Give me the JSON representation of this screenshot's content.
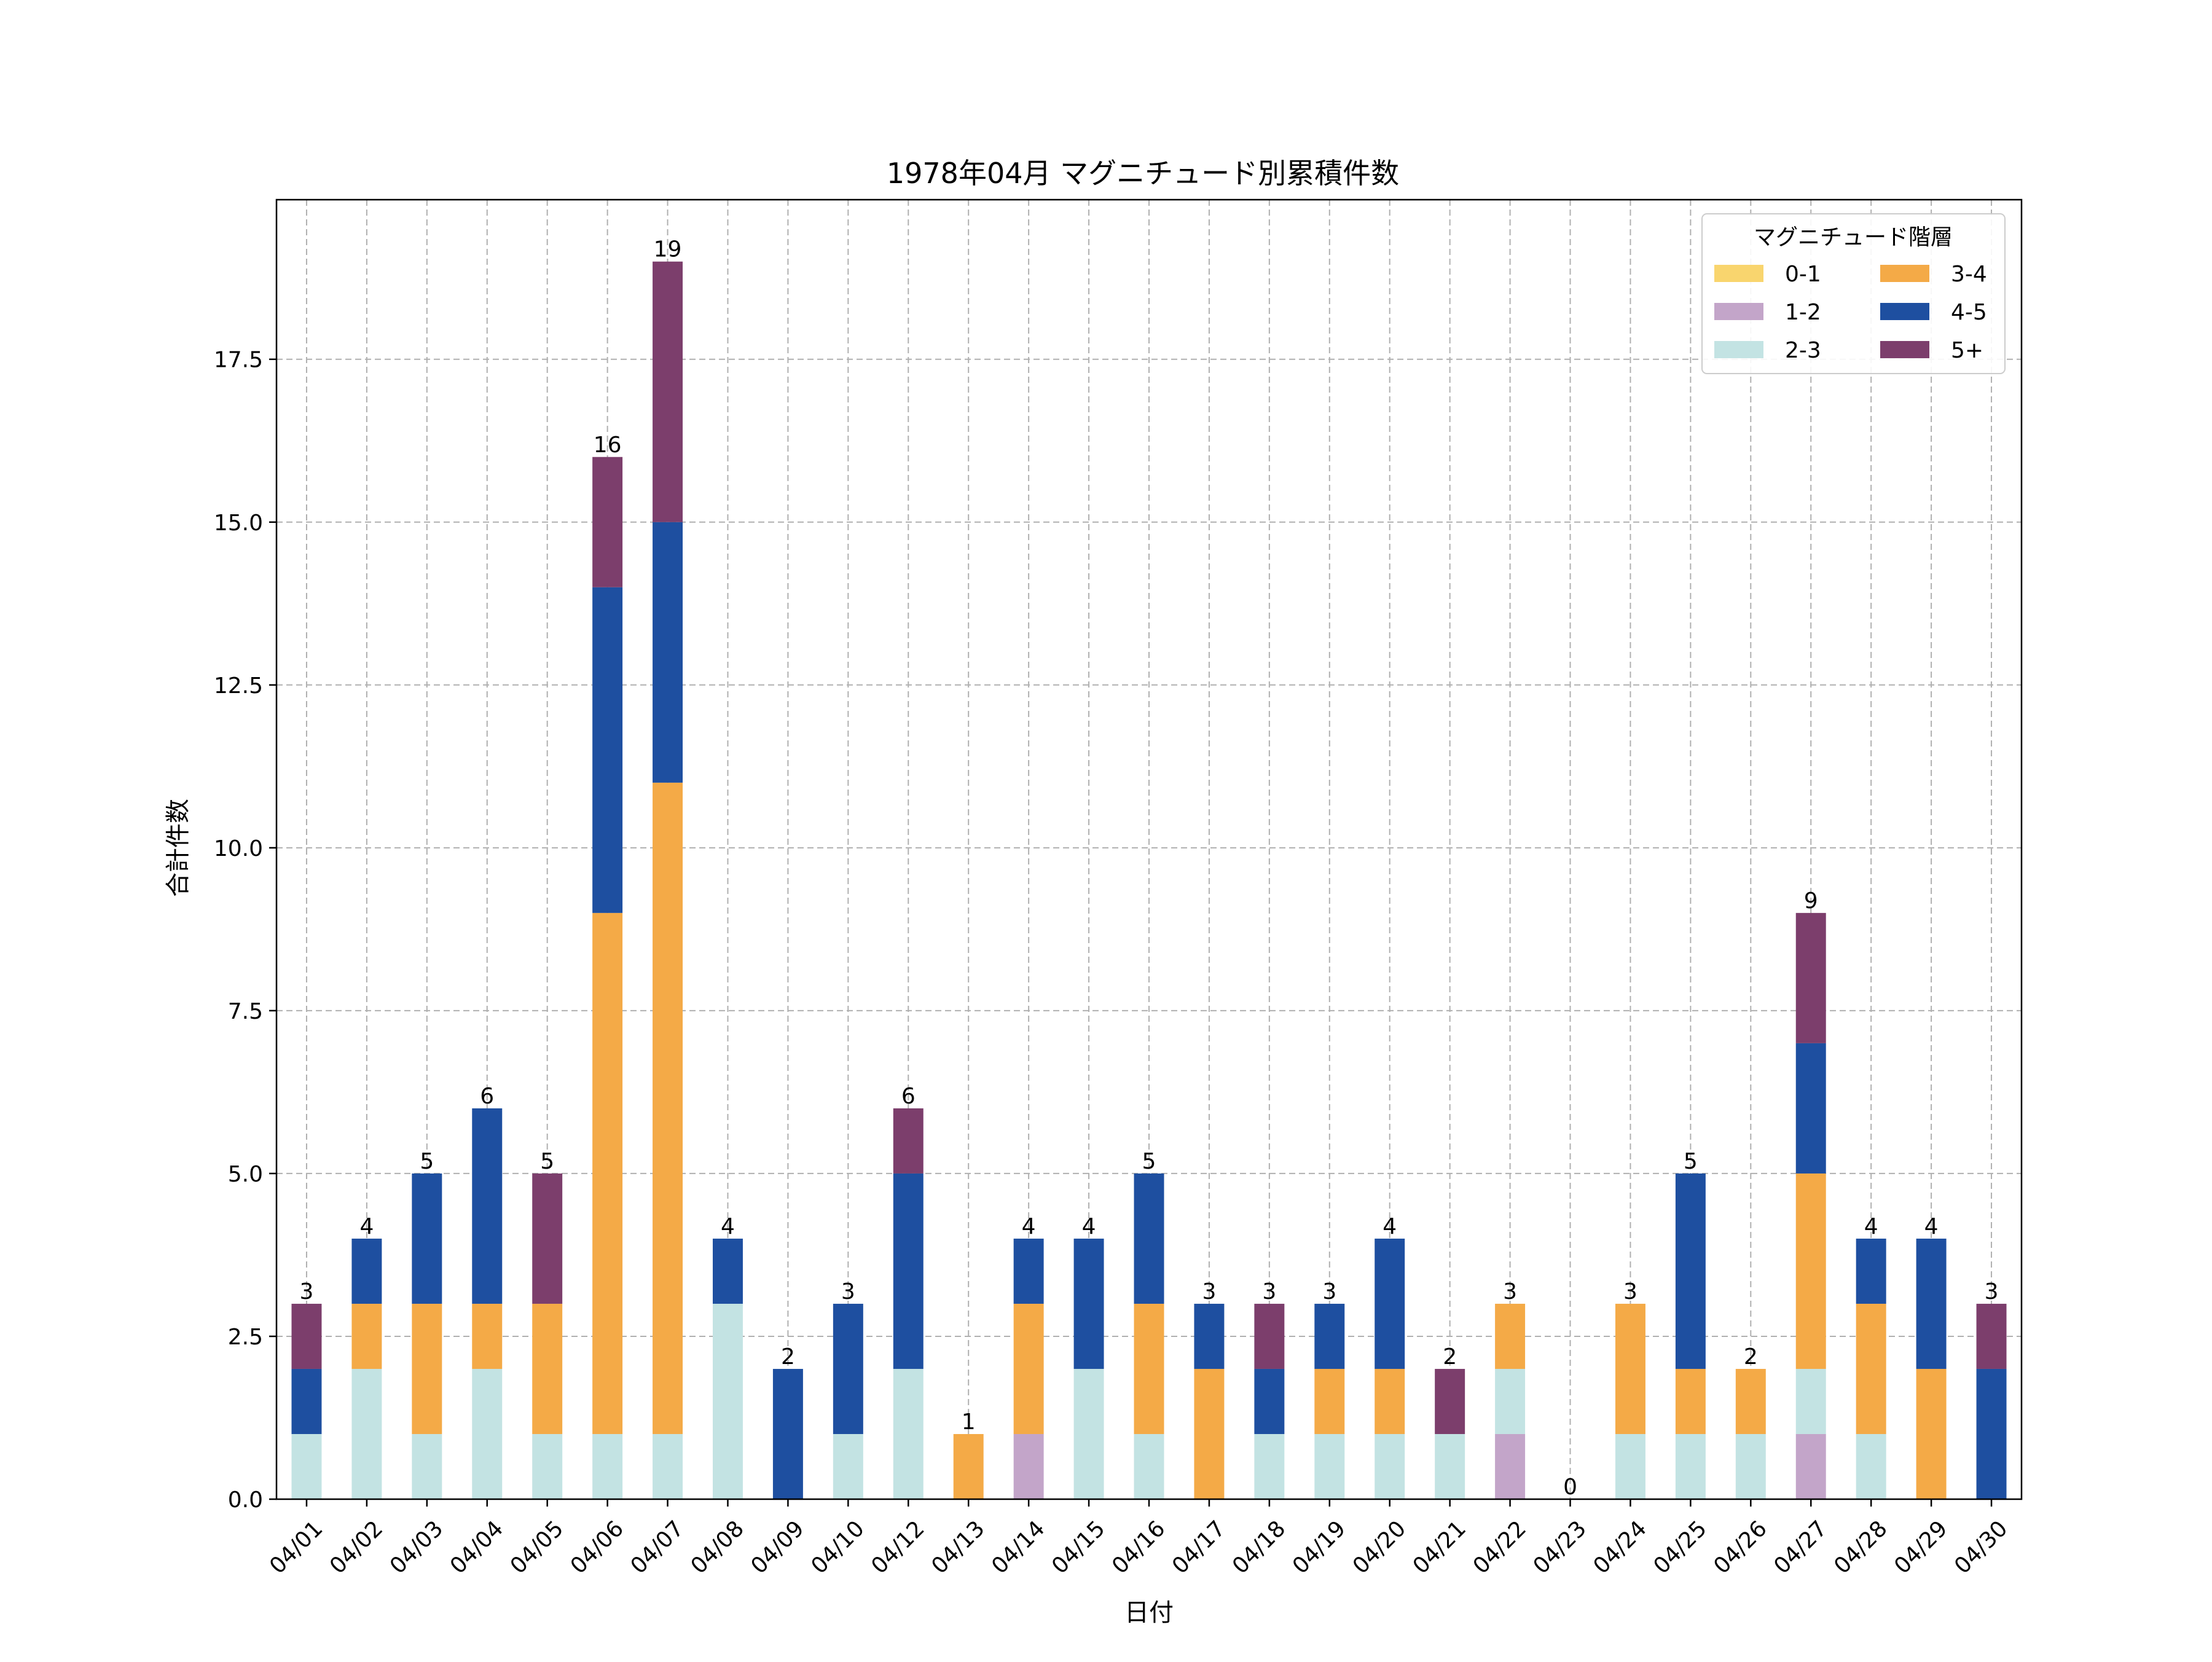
{
  "chart_data": {
    "type": "bar",
    "stacked": true,
    "title": "1978年04月 マグニチュード別累積件数",
    "xlabel": "日付",
    "ylabel": "合計件数",
    "ylim": [
      0,
      19.95
    ],
    "yticks": [
      "0.0",
      "2.5",
      "5.0",
      "7.5",
      "10.0",
      "12.5",
      "15.0",
      "17.5"
    ],
    "grid": true,
    "legend": {
      "title": "マグニチュード階層",
      "position": "top-right",
      "columns": 2
    },
    "categories": [
      "04/01",
      "04/02",
      "04/03",
      "04/04",
      "04/05",
      "04/06",
      "04/07",
      "04/08",
      "04/09",
      "04/10",
      "04/12",
      "04/13",
      "04/14",
      "04/15",
      "04/16",
      "04/17",
      "04/18",
      "04/19",
      "04/20",
      "04/21",
      "04/22",
      "04/23",
      "04/24",
      "04/25",
      "04/26",
      "04/27",
      "04/28",
      "04/29",
      "04/30"
    ],
    "series": [
      {
        "name": "0-1",
        "color": "#F9D56E",
        "values": [
          0,
          0,
          0,
          0,
          0,
          0,
          0,
          0,
          0,
          0,
          0,
          0,
          0,
          0,
          0,
          0,
          0,
          0,
          0,
          0,
          0,
          0,
          0,
          0,
          0,
          0,
          0,
          0,
          0
        ]
      },
      {
        "name": "1-2",
        "color": "#C3A5C9",
        "values": [
          0,
          0,
          0,
          0,
          0,
          0,
          0,
          0,
          0,
          0,
          0,
          0,
          1,
          0,
          0,
          0,
          0,
          0,
          0,
          0,
          1,
          0,
          0,
          0,
          0,
          1,
          0,
          0,
          0
        ]
      },
      {
        "name": "2-3",
        "color": "#C3E3E3",
        "values": [
          1,
          2,
          1,
          2,
          1,
          1,
          1,
          3,
          0,
          1,
          2,
          0,
          0,
          2,
          1,
          0,
          1,
          1,
          1,
          1,
          1,
          0,
          1,
          1,
          1,
          1,
          1,
          0,
          0
        ]
      },
      {
        "name": "3-4",
        "color": "#F4AA47",
        "values": [
          0,
          1,
          2,
          1,
          2,
          8,
          10,
          0,
          0,
          0,
          0,
          1,
          2,
          0,
          2,
          2,
          0,
          1,
          1,
          0,
          1,
          0,
          2,
          1,
          1,
          3,
          2,
          2,
          0
        ]
      },
      {
        "name": "4-5",
        "color": "#1E4FA0",
        "values": [
          1,
          1,
          2,
          3,
          0,
          5,
          4,
          1,
          2,
          2,
          3,
          0,
          1,
          2,
          2,
          1,
          1,
          1,
          2,
          0,
          0,
          0,
          0,
          3,
          0,
          2,
          1,
          2,
          2
        ]
      },
      {
        "name": "5+",
        "color": "#7C3E6C",
        "values": [
          1,
          0,
          0,
          0,
          2,
          2,
          4,
          0,
          0,
          0,
          1,
          0,
          0,
          0,
          0,
          0,
          1,
          0,
          0,
          1,
          0,
          0,
          0,
          0,
          0,
          2,
          0,
          0,
          1
        ]
      }
    ],
    "totals": [
      3,
      4,
      5,
      6,
      5,
      16,
      19,
      4,
      2,
      3,
      6,
      1,
      4,
      4,
      5,
      3,
      3,
      3,
      4,
      2,
      3,
      0,
      3,
      5,
      2,
      9,
      4,
      4,
      3
    ]
  }
}
